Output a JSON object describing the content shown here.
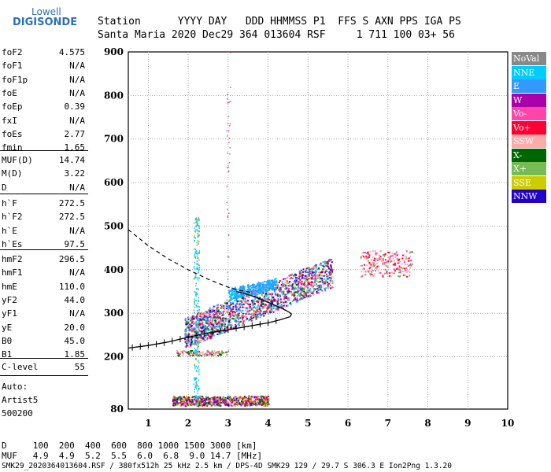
{
  "logo": {
    "line1": "Lowell",
    "line2": "DIGISONDE"
  },
  "header": {
    "row1": "Station      YYYY DAY   DDD HHMMSS P1  FFS S AXN PPS IGA PS",
    "row2": "Santa Maria 2020 Dec29 364 013604 RSF     1 711 100 03+ 56"
  },
  "params_group1": [
    {
      "k": "foF2",
      "v": "4.575"
    },
    {
      "k": "foF1",
      "v": "N/A"
    },
    {
      "k": "foF1p",
      "v": "N/A"
    },
    {
      "k": "foE",
      "v": "N/A"
    },
    {
      "k": "foEp",
      "v": "0.39"
    },
    {
      "k": "fxI",
      "v": "N/A"
    },
    {
      "k": "foEs",
      "v": "2.77"
    },
    {
      "k": "fmin",
      "v": "1.65"
    }
  ],
  "params_group2": [
    {
      "k": "MUF(D)",
      "v": "14.74"
    },
    {
      "k": "M(D)",
      "v": "3.22"
    },
    {
      "k": "D",
      "v": "N/A"
    }
  ],
  "params_group3": [
    {
      "k": "h`F",
      "v": "272.5"
    },
    {
      "k": "h`F2",
      "v": "272.5"
    },
    {
      "k": "h`E",
      "v": "N/A"
    },
    {
      "k": "h`Es",
      "v": "97.5"
    }
  ],
  "params_group4": [
    {
      "k": "hmF2",
      "v": "296.5"
    },
    {
      "k": "hmF1",
      "v": "N/A"
    },
    {
      "k": "hmE",
      "v": "110.0"
    },
    {
      "k": "yF2",
      "v": "44.0"
    },
    {
      "k": "yF1",
      "v": "N/A"
    },
    {
      "k": "yE",
      "v": "20.0"
    },
    {
      "k": "B0",
      "v": "45.0"
    },
    {
      "k": "B1",
      "v": "1.85"
    }
  ],
  "params_group5": [
    {
      "k": "C-level",
      "v": "55"
    }
  ],
  "autoscale": {
    "line1": "Auto:",
    "line2": "Artist5",
    "line3": "500200"
  },
  "footer": {
    "d_row": "D     100  200  400  600  800 1000 1500 3000 [km]",
    "muf_row": "MUF   4.9  4.9  5.2  5.5  6.0  6.8  9.0 14.7 [MHz]",
    "info_row": "SMK29_2020364013604.RSF / 380fx512h 25 kHz 2.5 km / DPS-4D SMK29 129 / 29.7 S 306.3 E Ion2Png 1.3.20"
  },
  "legend": [
    {
      "label": "NoVal",
      "color": "#888888"
    },
    {
      "label": "NNE",
      "color": "#00ccff"
    },
    {
      "label": "E",
      "color": "#3399ff"
    },
    {
      "label": "W",
      "color": "#aa00aa"
    },
    {
      "label": "Vo-",
      "color": "#ff44aa"
    },
    {
      "label": "Vo+",
      "color": "#ff0033"
    },
    {
      "label": "SSW",
      "color": "#ffaaaa"
    },
    {
      "label": "X-",
      "color": "#006600"
    },
    {
      "label": "X+",
      "color": "#77bb55"
    },
    {
      "label": "SSE",
      "color": "#cccc00"
    },
    {
      "label": "NNW",
      "color": "#2200cc"
    }
  ],
  "chart_data": {
    "type": "scatter",
    "xlim": [
      0.5,
      10
    ],
    "ylim": [
      80,
      900
    ],
    "x_ticks": [
      1,
      2,
      3,
      4,
      5,
      6,
      7,
      8,
      9,
      10
    ],
    "y_ticks": [
      80,
      200,
      300,
      400,
      500,
      600,
      700,
      800,
      900
    ],
    "grid": "dotted vertical and horizontal",
    "clusters": [
      {
        "name": "Es trace",
        "x_range": [
          1.65,
          4.0
        ],
        "y_range": [
          90,
          110
        ],
        "color": "#aa00aa"
      },
      {
        "name": "F trace low",
        "x_range": [
          2.0,
          3.5
        ],
        "y_range": [
          265,
          310
        ],
        "color": "#ff0033"
      },
      {
        "name": "F trace mid",
        "x_range": [
          3.0,
          4.6
        ],
        "y_range": [
          300,
          400
        ],
        "color": "#3399ff"
      },
      {
        "name": "F trace high",
        "x_range": [
          4.0,
          5.7
        ],
        "y_range": [
          330,
          445
        ],
        "color": "#aa00aa"
      },
      {
        "name": "oblique",
        "x_range": [
          6.3,
          7.6
        ],
        "y_range": [
          380,
          450
        ],
        "color": "#ffaaaa"
      }
    ],
    "profile_curve": {
      "x": [
        0.5,
        1.0,
        1.5,
        2.0,
        2.5,
        3.0,
        3.5,
        4.0,
        4.3,
        4.55,
        4.575
      ],
      "y": [
        220,
        226,
        234,
        245,
        255,
        262,
        270,
        278,
        285,
        292,
        296.5
      ]
    },
    "dashed_extrapolation": {
      "x": [
        0.5,
        1.0,
        1.5,
        2.0,
        2.5,
        3.0,
        3.3,
        3.6
      ],
      "y": [
        492,
        455,
        425,
        400,
        378,
        360,
        352,
        348
      ]
    }
  }
}
